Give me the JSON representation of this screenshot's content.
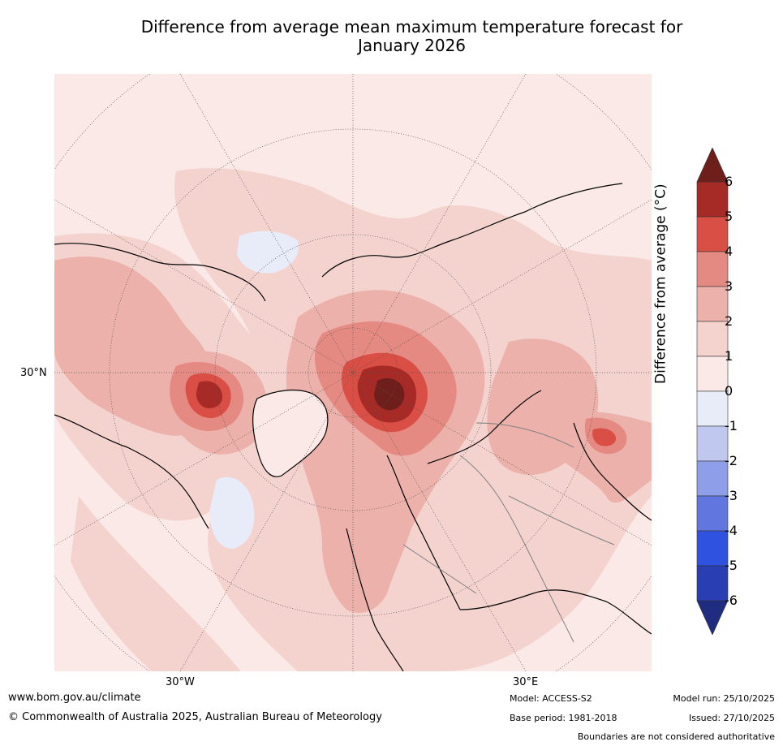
{
  "title_line1": "Difference from average mean maximum temperature forecast for",
  "title_line2": "January 2026",
  "map": {
    "projection": "north polar stereographic",
    "lat_label": "30°N",
    "lon_labels": [
      "30°W",
      "30°E"
    ],
    "colors": {
      "background": "#fbe9e7",
      "ocean_pale": "#fbe9e7",
      "level_1_2": "#f4d3cf",
      "level_2_3": "#ecb1aa",
      "level_3_4": "#e58a83",
      "level_4_5": "#d94e45",
      "level_5_6": "#a62a25",
      "level_gt6": "#6e1f1b",
      "cool_0_m1": "#e8ecf9",
      "coast": "#000000",
      "border": "#808080",
      "grid": "#555555"
    }
  },
  "colorbar": {
    "label": "Difference from average (°C)",
    "ticks": [
      "6",
      "5",
      "4",
      "3",
      "2",
      "1",
      "0",
      "-1",
      "-2",
      "-3",
      "-4",
      "-5",
      "-6"
    ],
    "colors": [
      "#a62a25",
      "#d94e45",
      "#e58a83",
      "#ecb1aa",
      "#f4d3cf",
      "#fbe9e7",
      "#e8ecf9",
      "#c0c8ef",
      "#8e9ee8",
      "#6276e0",
      "#2f53e0",
      "#2a3eb3"
    ],
    "top_arrow_color": "#6e1f1b",
    "bottom_arrow_color": "#1f2c80"
  },
  "footer": {
    "website": "www.bom.gov.au/climate",
    "copyright": "© Commonwealth of Australia 2025, Australian Bureau of Meteorology",
    "model": "Model: ACCESS-S2",
    "base_period": "Base period: 1981-2018",
    "model_run": "Model run: 25/10/2025",
    "issued": "Issued: 27/10/2025",
    "disclaimer": "Boundaries are not considered authoritative"
  }
}
